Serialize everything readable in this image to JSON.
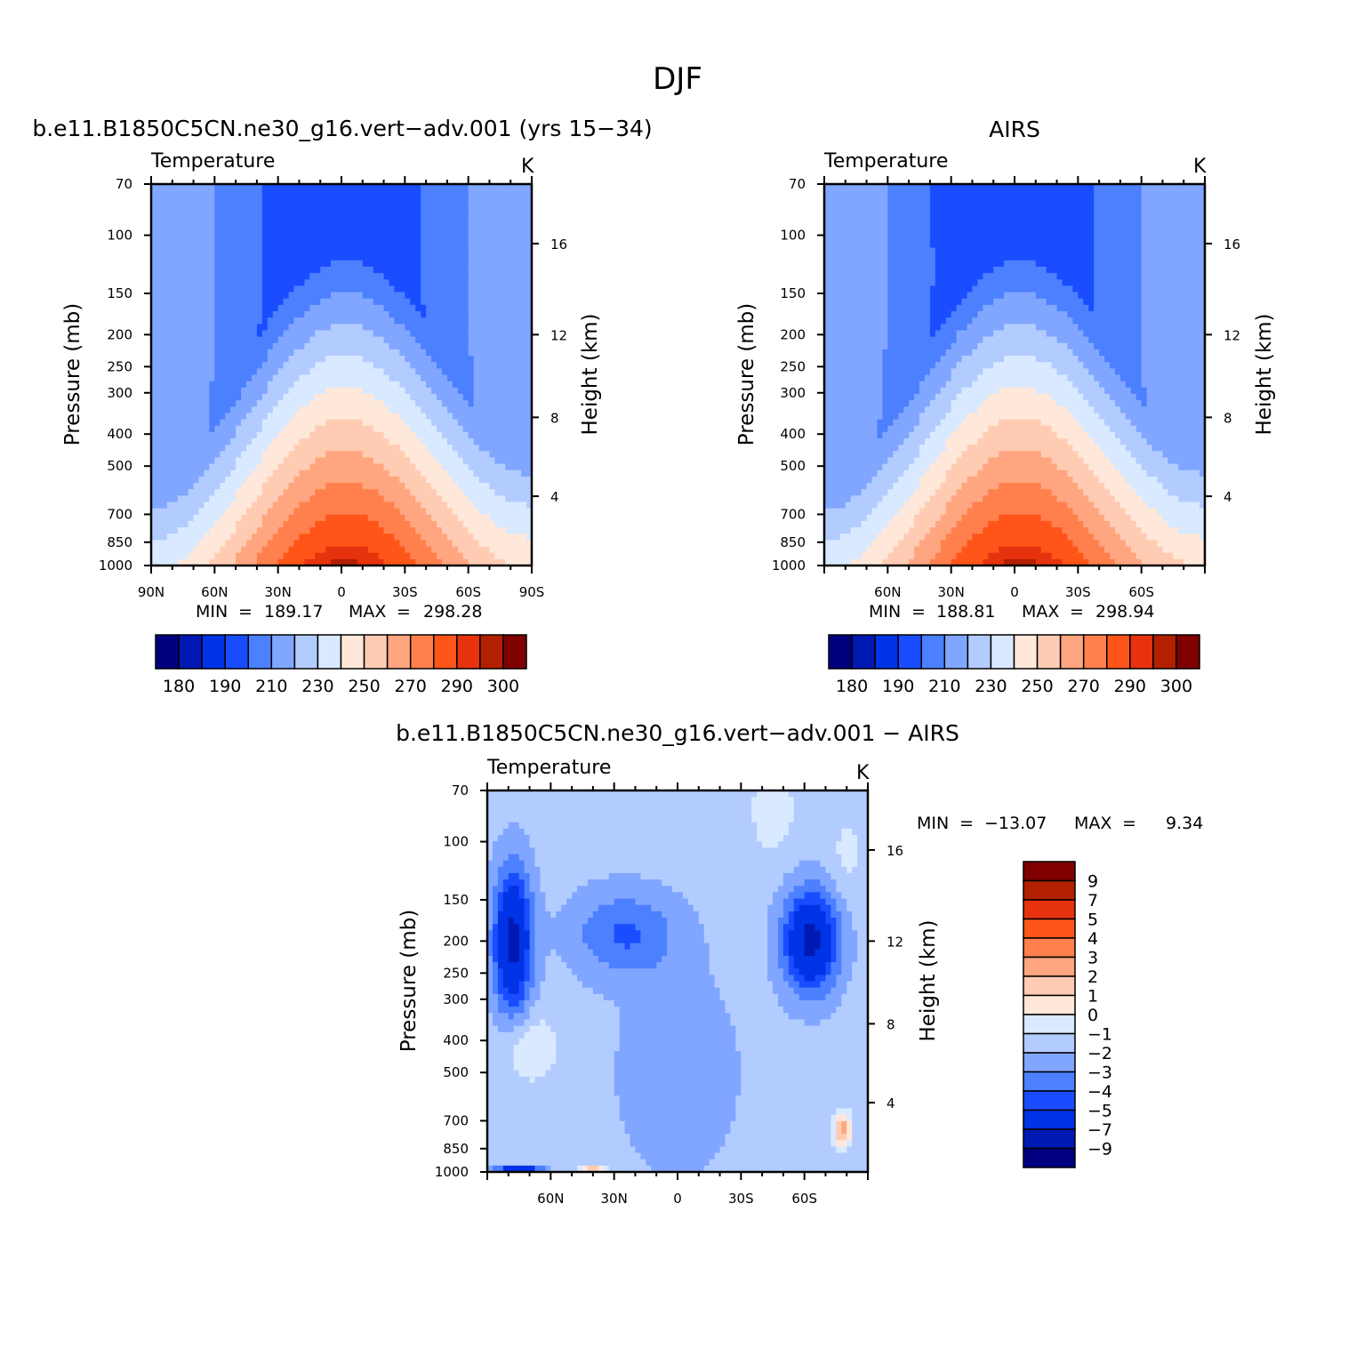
{
  "figure": {
    "title": "DJF"
  },
  "colors": {
    "abs_palette": [
      "#00007f",
      "#0019b3",
      "#0033e6",
      "#1a4dff",
      "#4d80ff",
      "#80a6ff",
      "#b3ccff",
      "#d9e9ff",
      "#ffe8d9",
      "#ffccb3",
      "#ffa680",
      "#ff804d",
      "#ff5519",
      "#e6330d",
      "#b32000",
      "#800000"
    ],
    "diff_palette": [
      "#000080",
      "#0019b3",
      "#0033e6",
      "#1a4dff",
      "#4d80ff",
      "#80a6ff",
      "#b3ccff",
      "#d9e9ff",
      "#ffe8d9",
      "#ffccb3",
      "#ffa680",
      "#ff804d",
      "#ff5519",
      "#e6330d",
      "#b32000",
      "#800000"
    ]
  },
  "chart_data": [
    {
      "id": "model",
      "type": "contour",
      "title": "b.e11.B1850C5CN.ne30_g16.vert−adv.001 (yrs 15−34)",
      "variable": "Temperature",
      "units": "K",
      "ylabel": "Pressure (mb)",
      "ylabel_right": "Height (km)",
      "x_ticks": [
        "90N",
        "60N",
        "30N",
        "0",
        "30S",
        "60S",
        "90S"
      ],
      "x_tick_pos": [
        -90,
        -60,
        -30,
        0,
        30,
        60,
        90
      ],
      "xlim": [
        -90,
        90
      ],
      "y_ticks": [
        70,
        100,
        150,
        200,
        250,
        300,
        400,
        500,
        700,
        850,
        1000
      ],
      "ylim": [
        70,
        1000
      ],
      "y_scale": "log",
      "height_ticks": [
        16,
        12,
        8,
        4
      ],
      "stats": {
        "min_label": "MIN",
        "min": "189.17",
        "max_label": "MAX",
        "max": "298.28"
      },
      "legend": "colorbar-horizontal",
      "colorbar_labels": [
        "180",
        "190",
        "210",
        "230",
        "250",
        "270",
        "290",
        "300"
      ]
    },
    {
      "id": "obs",
      "type": "contour",
      "title": "AIRS",
      "variable": "Temperature",
      "units": "K",
      "ylabel": "Pressure (mb)",
      "ylabel_right": "Height (km)",
      "x_ticks": [
        "60N",
        "30N",
        "0",
        "30S",
        "60S"
      ],
      "x_tick_pos": [
        -60,
        -30,
        0,
        30,
        60
      ],
      "xlim": [
        -90,
        90
      ],
      "y_ticks": [
        70,
        100,
        150,
        200,
        250,
        300,
        400,
        500,
        700,
        850,
        1000
      ],
      "ylim": [
        70,
        1000
      ],
      "y_scale": "log",
      "height_ticks": [
        16,
        12,
        8,
        4
      ],
      "stats": {
        "min_label": "MIN",
        "min": "188.81",
        "max_label": "MAX",
        "max": "298.94"
      },
      "legend": "colorbar-horizontal",
      "colorbar_labels": [
        "180",
        "190",
        "210",
        "230",
        "250",
        "270",
        "290",
        "300"
      ]
    },
    {
      "id": "diff",
      "type": "contour",
      "title": "b.e11.B1850C5CN.ne30_g16.vert−adv.001 − AIRS",
      "variable": "Temperature",
      "units": "K",
      "ylabel": "Pressure (mb)",
      "ylabel_right": "Height (km)",
      "x_ticks": [
        "60N",
        "30N",
        "0",
        "30S",
        "60S"
      ],
      "x_tick_pos": [
        -60,
        -30,
        0,
        30,
        60
      ],
      "xlim": [
        -90,
        90
      ],
      "y_ticks": [
        70,
        100,
        150,
        200,
        250,
        300,
        400,
        500,
        700,
        850,
        1000
      ],
      "ylim": [
        70,
        1000
      ],
      "y_scale": "log",
      "height_ticks": [
        16,
        12,
        8,
        4
      ],
      "stats": {
        "min_label": "MIN",
        "min": "−13.07",
        "max_label": "MAX",
        "max": "9.34"
      },
      "legend": "colorbar-vertical-right",
      "colorbar_labels": [
        "9",
        "7",
        "5",
        "4",
        "3",
        "2",
        "1",
        "0",
        "−1",
        "−2",
        "−3",
        "−4",
        "−5",
        "−7",
        "−9"
      ]
    }
  ]
}
